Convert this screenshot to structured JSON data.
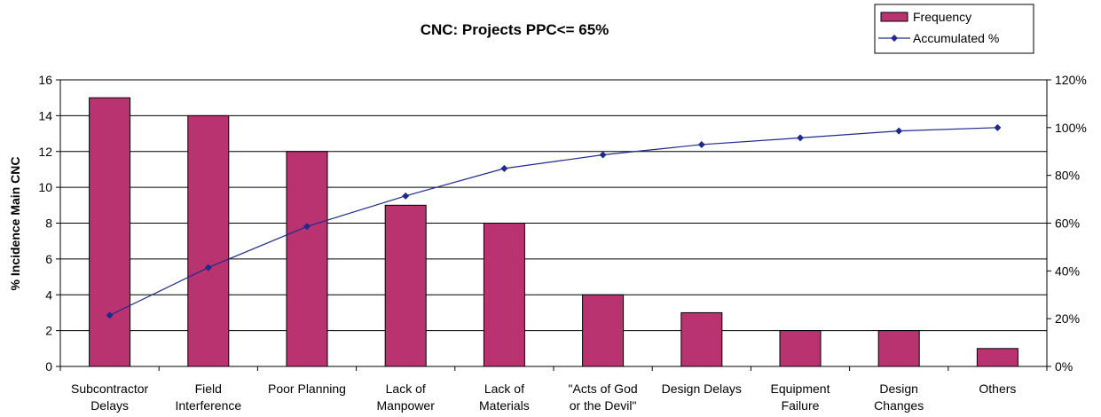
{
  "chart_data": {
    "type": "bar",
    "title": "CNC: Projects PPC<= 65%",
    "y_label": "% Incidence Main CNC",
    "categories": [
      "Subcontractor Delays",
      "Field Interference",
      "Poor Planning",
      "Lack of Manpower",
      "Lack of Materials",
      "\"Acts of God or the Devil\"",
      "Design Delays",
      "Equipment Failure",
      "Design Changes",
      "Others"
    ],
    "series": [
      {
        "name": "Frequency",
        "type": "bar",
        "color": "#b8336f",
        "values": [
          15,
          14,
          12,
          9,
          8,
          4,
          3,
          2,
          2,
          1
        ]
      },
      {
        "name": "Accumulated %",
        "type": "line",
        "axis": "y2",
        "color": "#1f2a8c",
        "values": [
          21.4,
          41.4,
          58.6,
          71.4,
          82.9,
          88.6,
          92.9,
          95.7,
          98.6,
          100
        ]
      }
    ],
    "ylim": [
      0,
      16
    ],
    "yticks": [
      0,
      2,
      4,
      6,
      8,
      10,
      12,
      14,
      16
    ],
    "y2lim": [
      0,
      120
    ],
    "y2ticks": [
      {
        "value": 0,
        "label": "0%"
      },
      {
        "value": 20,
        "label": "20%"
      },
      {
        "value": 40,
        "label": "40%"
      },
      {
        "value": 60,
        "label": "60%"
      },
      {
        "value": 80,
        "label": "80%"
      },
      {
        "value": 100,
        "label": "100%"
      },
      {
        "value": 120,
        "label": "120%"
      }
    ],
    "grid": true,
    "legend": "top-right"
  }
}
